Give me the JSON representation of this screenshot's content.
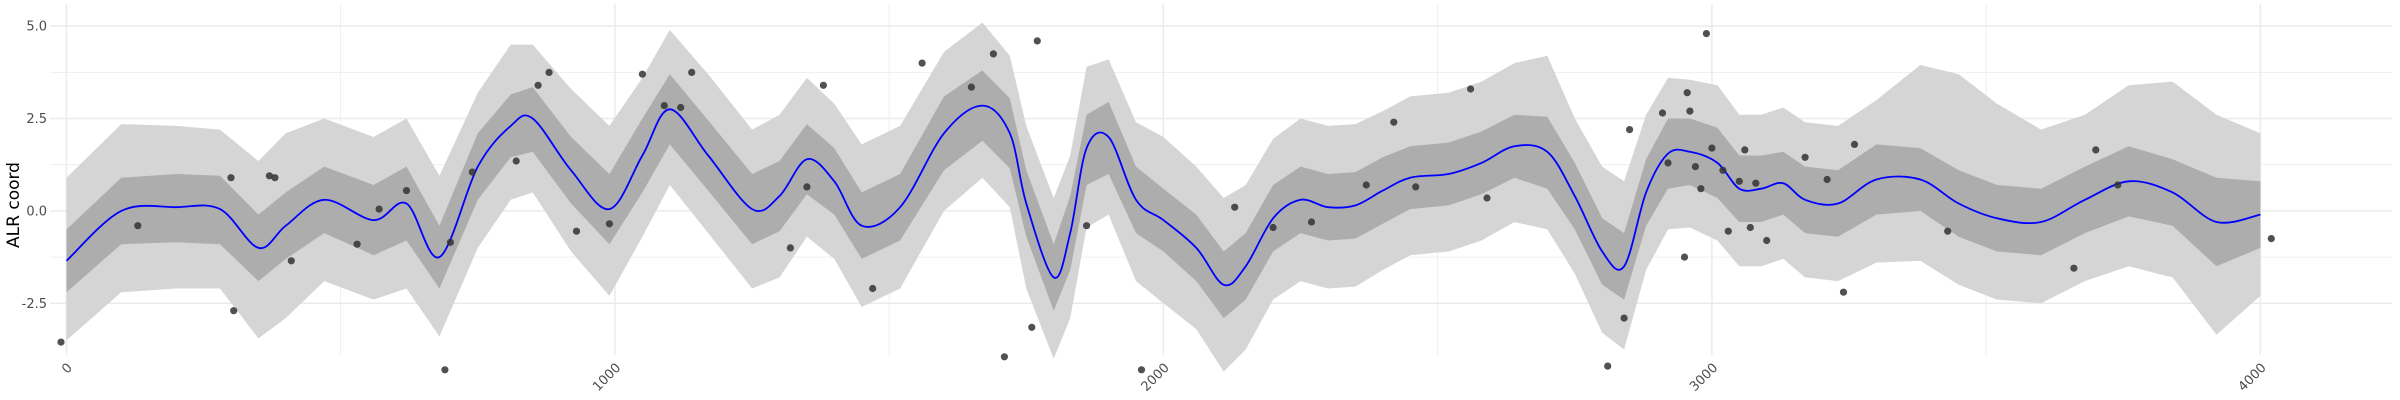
{
  "chart_data": {
    "type": "line",
    "title": "",
    "xlabel": "",
    "ylabel": "ALR coord",
    "xlim": [
      -30,
      4240
    ],
    "ylim": [
      -3.9,
      5.6
    ],
    "x_ticks": [
      0,
      1000,
      2000,
      3000,
      4000
    ],
    "x_tick_labels": [
      "0",
      "1000",
      "2000",
      "3000",
      "4000"
    ],
    "y_ticks": [
      -2.5,
      0.0,
      2.5,
      5.0
    ],
    "y_tick_labels": [
      "-2.5",
      "0.0",
      "2.5",
      "5.0"
    ],
    "grid": true,
    "legend": "none",
    "colors": {
      "mean_line": "#0000ff",
      "inner_band": "#adadad",
      "outer_band": "#d5d5d5",
      "points": "#333333",
      "grid": "#ebebeb"
    },
    "series": [
      {
        "role": "posterior-mean",
        "x": [
          0,
          100,
          200,
          280,
          350,
          400,
          470,
          560,
          620,
          680,
          750,
          810,
          850,
          920,
          990,
          1050,
          1100,
          1170,
          1250,
          1300,
          1350,
          1400,
          1450,
          1520,
          1600,
          1670,
          1720,
          1750,
          1800,
          1830,
          1860,
          1900,
          1950,
          2000,
          2060,
          2110,
          2150,
          2200,
          2250,
          2300,
          2350,
          2400,
          2450,
          2520,
          2580,
          2640,
          2700,
          2750,
          2800,
          2840,
          2880,
          2920,
          2960,
          3010,
          3050,
          3090,
          3130,
          3170,
          3230,
          3300,
          3380,
          3450,
          3520,
          3600,
          3680,
          3760,
          3840,
          3920,
          4000
        ],
        "y": [
          -1.35,
          0.0,
          0.1,
          0.05,
          -1.0,
          -0.4,
          0.3,
          -0.25,
          0.2,
          -1.25,
          1.2,
          2.3,
          2.5,
          1.1,
          0.05,
          1.5,
          2.75,
          1.5,
          0.05,
          0.4,
          1.4,
          0.8,
          -0.4,
          0.1,
          2.1,
          2.85,
          2.1,
          0.2,
          -1.8,
          -0.6,
          1.7,
          2.0,
          0.3,
          -0.25,
          -1.0,
          -2.0,
          -1.5,
          -0.2,
          0.3,
          0.1,
          0.15,
          0.55,
          0.9,
          1.0,
          1.3,
          1.75,
          1.6,
          0.4,
          -1.1,
          -1.5,
          0.5,
          1.55,
          1.6,
          1.3,
          0.6,
          0.6,
          0.75,
          0.3,
          0.2,
          0.85,
          0.85,
          0.2,
          -0.2,
          -0.3,
          0.3,
          0.8,
          0.5,
          -0.3,
          -0.1
        ]
      },
      {
        "role": "observations",
        "x": [
          -10,
          130,
          300,
          305,
          370,
          380,
          410,
          530,
          570,
          620,
          690,
          700,
          740,
          820,
          860,
          880,
          930,
          990,
          1050,
          1090,
          1120,
          1140,
          1320,
          1350,
          1380,
          1470,
          1560,
          1650,
          1690,
          1710,
          1760,
          1770,
          1860,
          1960,
          2130,
          2200,
          2270,
          2370,
          2420,
          2460,
          2560,
          2590,
          2810,
          2840,
          2850,
          2910,
          2920,
          2950,
          2955,
          2960,
          2970,
          2980,
          2990,
          3000,
          3020,
          3030,
          3050,
          3060,
          3070,
          3080,
          3100,
          3170,
          3210,
          3240,
          3260,
          3430,
          3660,
          3700,
          3740,
          4020
        ],
        "y": [
          -3.55,
          -0.4,
          0.9,
          -2.7,
          0.95,
          0.9,
          -1.35,
          -0.9,
          0.05,
          0.55,
          -4.3,
          -0.85,
          1.05,
          1.35,
          3.4,
          3.75,
          -0.55,
          -0.35,
          3.7,
          2.85,
          2.8,
          3.75,
          -1.0,
          0.65,
          3.4,
          -2.1,
          4.0,
          3.35,
          4.25,
          -3.95,
          -3.15,
          4.6,
          -0.4,
          -4.3,
          0.1,
          -0.45,
          -0.3,
          0.7,
          2.4,
          0.65,
          3.3,
          0.35,
          -4.2,
          -2.9,
          2.2,
          2.65,
          1.3,
          -1.25,
          3.2,
          2.7,
          1.2,
          0.6,
          4.8,
          1.7,
          1.1,
          -0.55,
          0.8,
          1.65,
          -0.45,
          0.75,
          -0.8,
          1.45,
          0.85,
          -2.2,
          1.8,
          -0.55,
          -1.55,
          1.65,
          0.7,
          -0.75
        ]
      }
    ],
    "bands": [
      {
        "role": "outer-interval",
        "x": [
          0,
          100,
          200,
          280,
          350,
          400,
          470,
          560,
          620,
          680,
          750,
          810,
          850,
          920,
          990,
          1050,
          1100,
          1170,
          1250,
          1300,
          1350,
          1400,
          1450,
          1520,
          1600,
          1670,
          1720,
          1750,
          1800,
          1830,
          1860,
          1900,
          1950,
          2000,
          2060,
          2110,
          2150,
          2200,
          2250,
          2300,
          2350,
          2400,
          2450,
          2520,
          2580,
          2640,
          2700,
          2750,
          2800,
          2840,
          2880,
          2920,
          2960,
          3010,
          3050,
          3090,
          3130,
          3170,
          3230,
          3300,
          3380,
          3450,
          3520,
          3600,
          3680,
          3760,
          3840,
          3920,
          4000
        ],
        "lower": [
          -3.5,
          -2.2,
          -2.1,
          -2.1,
          -3.45,
          -2.9,
          -1.9,
          -2.4,
          -2.1,
          -3.4,
          -1.0,
          0.3,
          0.5,
          -1.1,
          -2.3,
          -0.7,
          0.7,
          -0.6,
          -2.1,
          -1.8,
          -0.7,
          -1.3,
          -2.6,
          -2.1,
          0.0,
          0.9,
          0.1,
          -2.1,
          -4.0,
          -2.9,
          -0.45,
          -0.1,
          -1.9,
          -2.5,
          -3.2,
          -4.35,
          -3.75,
          -2.4,
          -1.9,
          -2.1,
          -2.05,
          -1.6,
          -1.2,
          -1.1,
          -0.8,
          -0.3,
          -0.5,
          -1.7,
          -3.3,
          -3.75,
          -1.6,
          -0.5,
          -0.45,
          -0.8,
          -1.5,
          -1.5,
          -1.3,
          -1.8,
          -1.9,
          -1.4,
          -1.35,
          -2.0,
          -2.4,
          -2.5,
          -1.9,
          -1.5,
          -1.8,
          -3.35,
          -2.3
        ],
        "upper": [
          0.9,
          2.35,
          2.3,
          2.2,
          1.35,
          2.1,
          2.5,
          2.0,
          2.5,
          0.95,
          3.2,
          4.5,
          4.5,
          3.3,
          2.3,
          3.6,
          4.9,
          3.7,
          2.2,
          2.6,
          3.6,
          2.9,
          1.8,
          2.3,
          4.3,
          5.1,
          4.2,
          2.3,
          0.35,
          1.5,
          3.9,
          4.1,
          2.4,
          2.0,
          1.2,
          0.35,
          0.7,
          1.95,
          2.5,
          2.3,
          2.35,
          2.7,
          3.1,
          3.2,
          3.5,
          4.0,
          4.2,
          2.5,
          1.2,
          0.8,
          2.6,
          3.6,
          3.55,
          3.4,
          2.6,
          2.6,
          2.8,
          2.4,
          2.3,
          3.0,
          3.95,
          3.7,
          2.9,
          2.2,
          2.6,
          3.4,
          3.5,
          2.6,
          2.1
        ]
      },
      {
        "role": "inner-interval",
        "x": [
          0,
          100,
          200,
          280,
          350,
          400,
          470,
          560,
          620,
          680,
          750,
          810,
          850,
          920,
          990,
          1050,
          1100,
          1170,
          1250,
          1300,
          1350,
          1400,
          1450,
          1520,
          1600,
          1670,
          1720,
          1750,
          1800,
          1830,
          1860,
          1900,
          1950,
          2000,
          2060,
          2110,
          2150,
          2200,
          2250,
          2300,
          2350,
          2400,
          2450,
          2520,
          2580,
          2640,
          2700,
          2750,
          2800,
          2840,
          2880,
          2920,
          2960,
          3010,
          3050,
          3090,
          3130,
          3170,
          3230,
          3300,
          3380,
          3450,
          3520,
          3600,
          3680,
          3760,
          3840,
          3920,
          4000
        ],
        "lower": [
          -2.2,
          -0.9,
          -0.85,
          -0.9,
          -1.9,
          -1.3,
          -0.6,
          -1.2,
          -0.8,
          -2.1,
          0.3,
          1.45,
          1.6,
          0.2,
          -0.9,
          0.5,
          1.8,
          0.55,
          -0.9,
          -0.55,
          0.45,
          -0.1,
          -1.3,
          -0.8,
          1.1,
          1.9,
          1.15,
          -0.7,
          -2.7,
          -1.6,
          0.7,
          1.0,
          -0.6,
          -1.1,
          -1.9,
          -2.9,
          -2.4,
          -1.1,
          -0.6,
          -0.8,
          -0.75,
          -0.35,
          0.05,
          0.15,
          0.45,
          0.9,
          0.6,
          -0.5,
          -2.0,
          -2.4,
          -0.4,
          0.6,
          0.7,
          0.35,
          -0.3,
          -0.3,
          -0.1,
          -0.6,
          -0.7,
          -0.1,
          0.0,
          -0.7,
          -1.1,
          -1.2,
          -0.6,
          -0.15,
          -0.4,
          -1.5,
          -1.0
        ],
        "upper": [
          -0.5,
          0.9,
          1.0,
          0.95,
          -0.1,
          0.5,
          1.2,
          0.7,
          1.2,
          -0.4,
          2.1,
          3.15,
          3.35,
          2.0,
          1.0,
          2.5,
          3.7,
          2.45,
          1.0,
          1.35,
          2.35,
          1.7,
          0.5,
          1.0,
          3.1,
          3.8,
          3.05,
          1.1,
          -0.9,
          0.4,
          2.6,
          2.95,
          1.2,
          0.6,
          -0.1,
          -1.1,
          -0.6,
          0.7,
          1.2,
          1.0,
          1.05,
          1.45,
          1.75,
          1.85,
          2.15,
          2.6,
          2.55,
          1.3,
          -0.2,
          -0.6,
          1.4,
          2.5,
          2.5,
          2.25,
          1.5,
          1.5,
          1.6,
          1.2,
          1.1,
          1.8,
          1.7,
          1.1,
          0.7,
          0.6,
          1.2,
          1.75,
          1.4,
          0.9,
          0.8
        ]
      }
    ]
  }
}
